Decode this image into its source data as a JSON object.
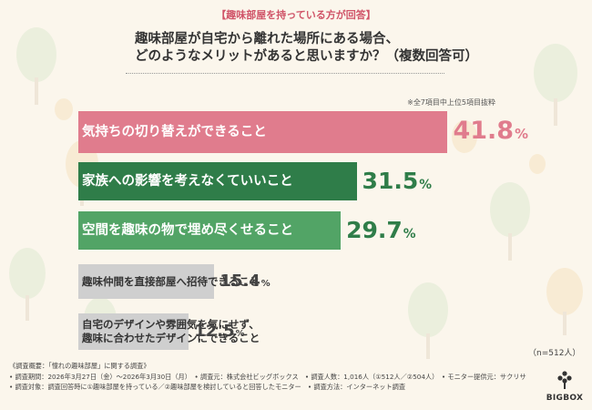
{
  "header": {
    "tag": "【趣味部屋を持っている方が回答】",
    "question_line1": "趣味部屋が自宅から離れた場所にある場合、",
    "question_line2": "どのようなメリットがあると思いますか？（複数回答可）",
    "note": "※全7項目中上位5項目抜粋"
  },
  "chart_data": {
    "type": "bar",
    "orientation": "horizontal",
    "unit": "%",
    "categories": [
      "気持ちの切り替えができること",
      "家族への影響を考えなくていいこと",
      "空間を趣味の物で埋め尽くせること",
      "趣味仲間を直接部屋へ招待できること",
      "自宅のデザインや雰囲気を気にせず、趣味に合わせたデザインにできること"
    ],
    "label_lines": [
      [
        "気持ちの切り替えができること"
      ],
      [
        "家族への影響を考えなくていいこと"
      ],
      [
        "空間を趣味の物で埋め尽くせること"
      ],
      [
        "趣味仲間を直接部屋へ招待できること"
      ],
      [
        "自宅のデザインや雰囲気を気にせず、",
        "趣味に合わせたデザインにできること"
      ]
    ],
    "values": [
      41.8,
      31.5,
      29.7,
      15.4,
      12.5
    ],
    "colors": [
      "#e07c8d",
      "#2f7d49",
      "#52a466",
      "#cfcfcf",
      "#cfcfcf"
    ],
    "pct_colors": [
      "#e07c8d",
      "#2f7d49",
      "#2f7d49",
      "#444444",
      "#444444"
    ],
    "sample_note": "（n=512人）"
  },
  "footer": {
    "lines": [
      "《調査概要：「憧れの趣味部屋」に関する調査》",
      "• 調査期間：2026年3月27日（金）～2026年3月30日（月）　• 調査元：株式会社ビッグボックス　• 調査人数：1,016人（①512人／②504人）　• モニター提供元：サクリサ",
      "• 調査対象：調査回答時に①趣味部屋を持っている／②趣味部屋を検討していると回答したモニター　• 調査方法：インターネット調査"
    ]
  },
  "logo": {
    "text": "BIGBOX"
  },
  "colors": {
    "background": "#fbf6ec",
    "accent": "#d05468"
  }
}
